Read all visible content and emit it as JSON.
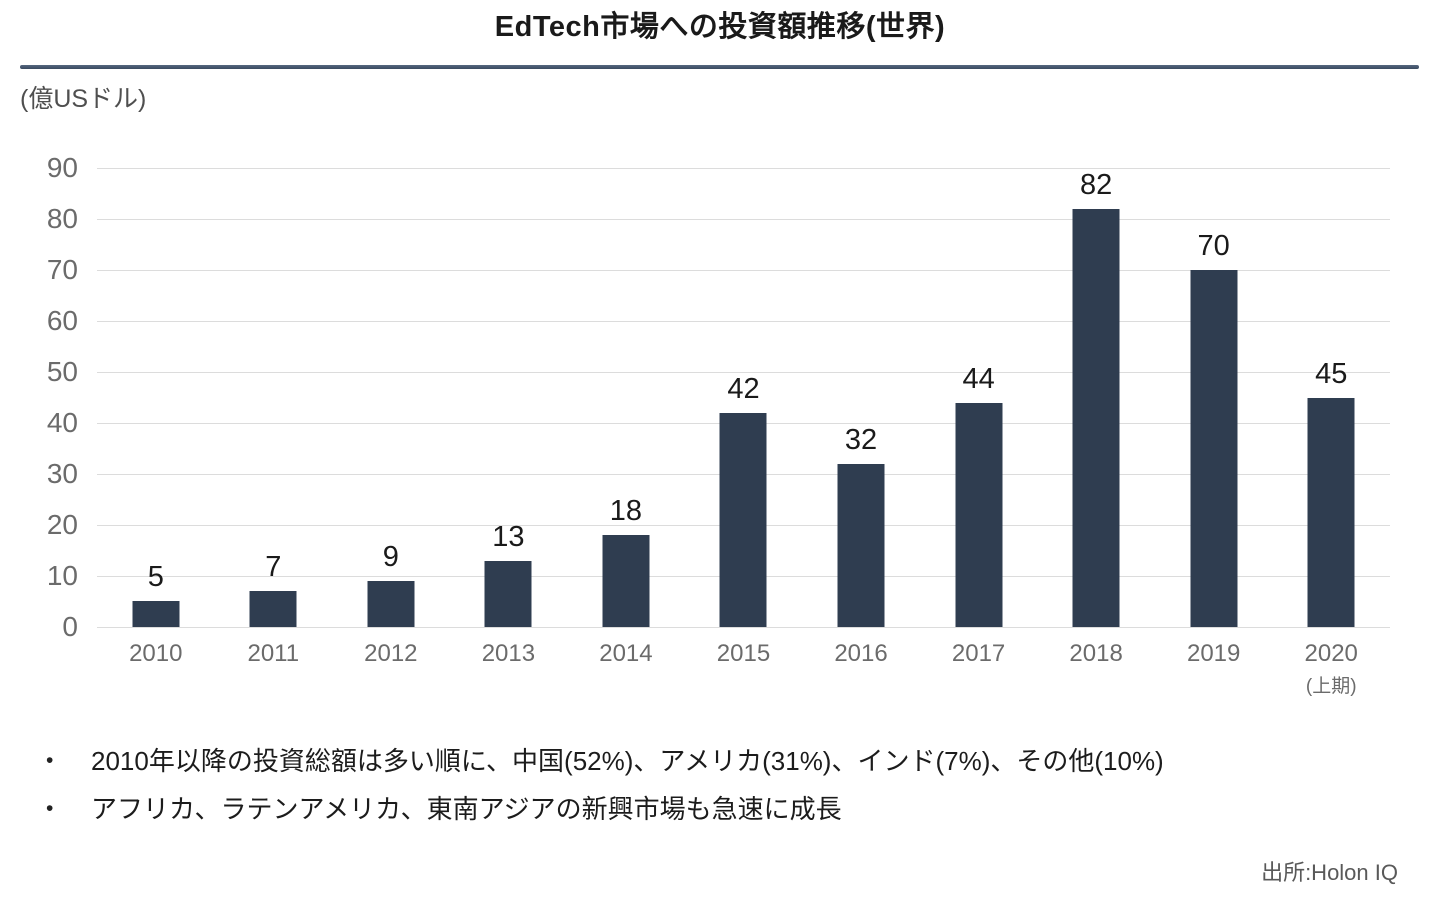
{
  "title": "EdTech市場への投資額推移(世界)",
  "y_axis_unit": "(億USドル)",
  "chart_data": {
    "type": "bar",
    "title": "EdTech市場への投資額推移(世界)",
    "ylabel": "(億USドル)",
    "xlabel": "",
    "categories": [
      "2010",
      "2011",
      "2012",
      "2013",
      "2014",
      "2015",
      "2016",
      "2017",
      "2018",
      "2019",
      "2020"
    ],
    "category_sublabels": [
      "",
      "",
      "",
      "",
      "",
      "",
      "",
      "",
      "",
      "",
      "(上期)"
    ],
    "values": [
      5,
      7,
      9,
      13,
      18,
      42,
      32,
      44,
      82,
      70,
      45
    ],
    "ylim": [
      0,
      90
    ],
    "ytick_step": 10,
    "grid": true,
    "legend": false
  },
  "bullet_marker": "•",
  "bullets": [
    "2010年以降の投資総額は多い順に、中国(52%)、アメリカ(31%)、インド(7%)、その他(10%)",
    "アフリカ、ラテンアメリカ、東南アジアの新興市場も急速に成長"
  ],
  "source": "出所:Holon IQ",
  "colors": {
    "bar": "#2f3d50",
    "gridline": "#dcdcdc",
    "axis_label": "#6b6b6b",
    "value_label": "#1a1a1a",
    "title_rule": "#42536a",
    "source_text": "#595959"
  }
}
